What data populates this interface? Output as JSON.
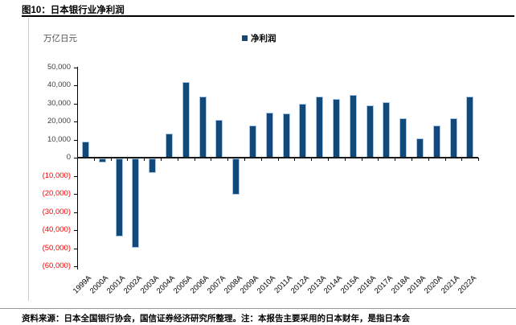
{
  "header": {
    "title": "图10：日本银行业净利润"
  },
  "footer": {
    "source": "资料来源：日本全国银行协会，国信证券经济研究所整理。注：本报告主要采用的日本财年，是指日本会"
  },
  "chart_data": {
    "type": "bar",
    "title": "日本银行业净利润",
    "unit_label": "万亿日元",
    "legend": [
      {
        "label": "净利润",
        "color": "#10497A"
      }
    ],
    "categories": [
      "1999A",
      "2000A",
      "2001A",
      "2002A",
      "2003A",
      "2004A",
      "2005A",
      "2006A",
      "2007A",
      "2008A",
      "2009A",
      "2010A",
      "2011A",
      "2012A",
      "2013A",
      "2014A",
      "2015A",
      "2016A",
      "2017A",
      "2018A",
      "2019A",
      "2020A",
      "2021A",
      "2022A"
    ],
    "series": [
      {
        "name": "净利润",
        "values": [
          9000,
          -2000,
          -43000,
          -49500,
          -8000,
          13500,
          42000,
          34000,
          21000,
          -20000,
          18000,
          25000,
          24500,
          30000,
          34000,
          32500,
          34500,
          29000,
          30500,
          22000,
          10500,
          18000,
          22000,
          34000
        ]
      }
    ],
    "ylim": [
      -60000,
      50000
    ],
    "ytick_step": 10000,
    "ytick_labels": [
      "50,000",
      "40,000",
      "30,000",
      "20,000",
      "10,000",
      "0",
      "(10,000)",
      "(20,000)",
      "(30,000)",
      "(40,000)",
      "(50,000)",
      "(60,000)"
    ],
    "grid": "off",
    "legend_position": "top-center",
    "colors": {
      "bar_fill": "#10497A",
      "bar_edge": "#A9C6E2",
      "negative_tick_label": "#FF0000",
      "positive_tick_label": "#404040",
      "axis": "#000000"
    }
  }
}
